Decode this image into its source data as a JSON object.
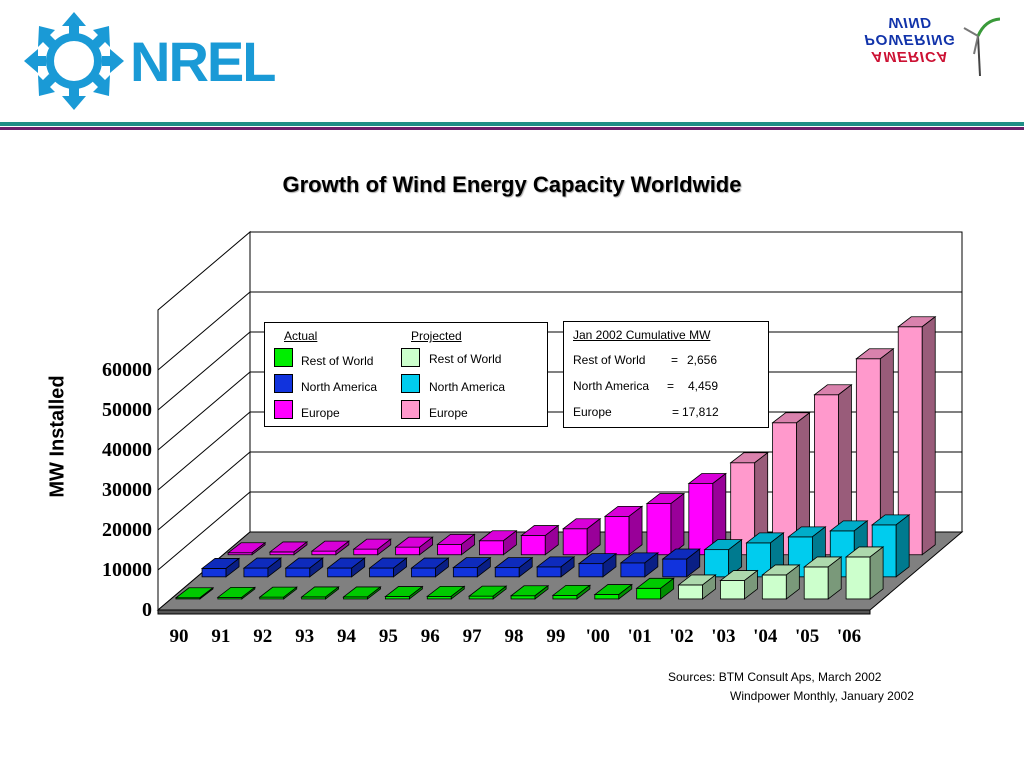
{
  "logos": {
    "left": "NREL",
    "right_line1": "WIND",
    "right_line2": "POWERING",
    "right_line3": "AMERICA"
  },
  "chart_data": {
    "type": "bar",
    "title": "Growth of Wind Energy Capacity Worldwide",
    "ylabel": "MW Installed",
    "xlabel": "",
    "ylim": [
      0,
      60000
    ],
    "yticks": [
      "0",
      "10000",
      "20000",
      "30000",
      "40000",
      "50000",
      "60000"
    ],
    "categories": [
      "90",
      "91",
      "92",
      "93",
      "94",
      "95",
      "96",
      "97",
      "98",
      "99",
      "'00",
      "'01",
      "'02",
      "'03",
      "'04",
      "'05",
      "'06"
    ],
    "series": [
      {
        "name": "Rest of World",
        "values": [
          300,
          400,
          450,
          500,
          500,
          600,
          650,
          700,
          800,
          900,
          1100,
          2656,
          3500,
          4600,
          6000,
          8000,
          10500
        ],
        "projected_from_index": 12
      },
      {
        "name": "North America",
        "values": [
          2100,
          2200,
          2200,
          2200,
          2200,
          2200,
          2300,
          2300,
          2500,
          3300,
          3500,
          4459,
          6800,
          8500,
          10000,
          11500,
          13000
        ],
        "projected_from_index": 12
      },
      {
        "name": "Europe",
        "values": [
          500,
          700,
          900,
          1400,
          1900,
          2600,
          3500,
          4800,
          6500,
          9600,
          12800,
          17812,
          23000,
          33000,
          40000,
          49000,
          57000
        ],
        "projected_from_index": 12
      }
    ],
    "colors": {
      "Rest of World": {
        "actual": "#00ee00",
        "projected": "#ccffcc"
      },
      "North America": {
        "actual": "#1133dd",
        "projected": "#00ccee"
      },
      "Europe": {
        "actual": "#ff00ff",
        "projected": "#ff99cc"
      }
    },
    "legend": {
      "actual_title": "Actual",
      "projected_title": "Projected",
      "items": [
        "Rest of World",
        "North America",
        "Europe"
      ]
    },
    "annotation": {
      "title": "Jan 2002 Cumulative MW",
      "rows": [
        {
          "label": "Rest of World",
          "sep": "=",
          "value": "2,656"
        },
        {
          "label": "North America",
          "sep": "=",
          "value": "4,459"
        },
        {
          "label": "Europe",
          "sep": "=",
          "value": "17,812"
        }
      ]
    },
    "grid": true,
    "legend_placement": "top-left"
  },
  "sources": {
    "line1": "Sources:  BTM Consult Aps, March 2002",
    "line2": "Windpower Monthly, January 2002"
  }
}
